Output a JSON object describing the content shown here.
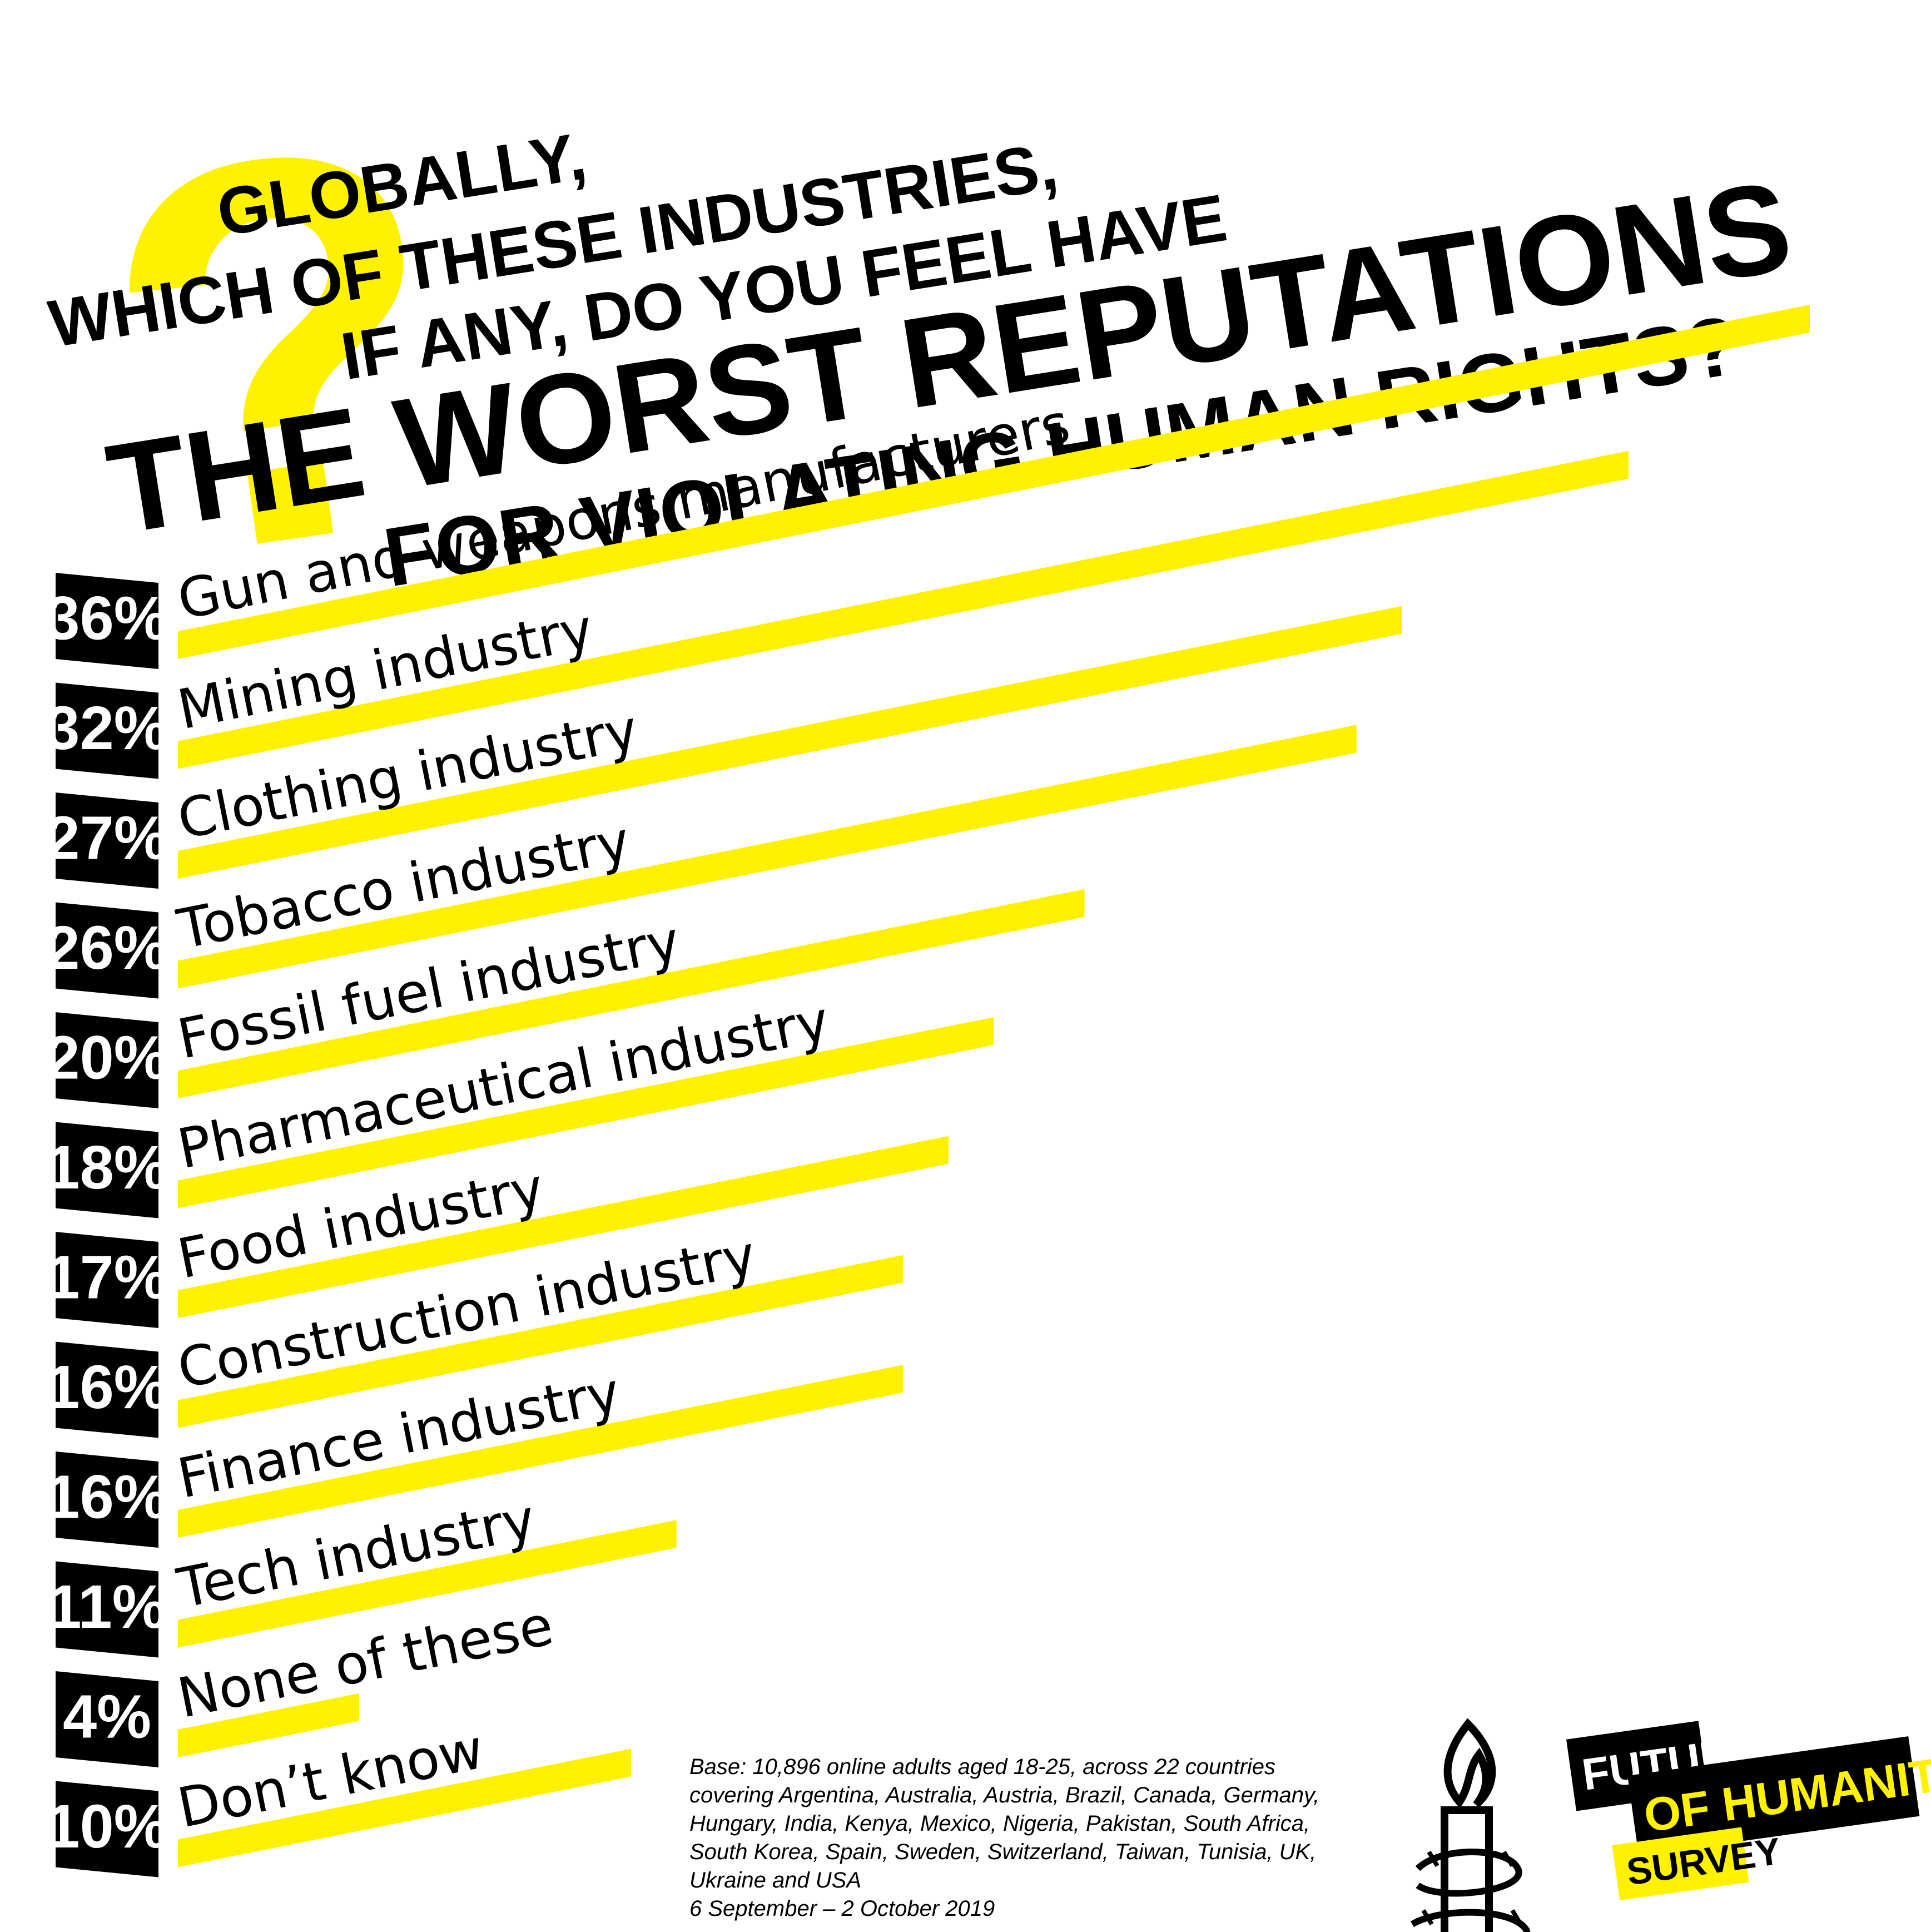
{
  "title": {
    "line1": "GLOBALLY,",
    "line2": "WHICH OF THESE INDUSTRIES,",
    "line3": "IF ANY, DO YOU FEEL HAVE",
    "line4": "THE WORST REPUTATIONS",
    "line5": "FOR VIOLATING HUMAN RIGHTS?"
  },
  "chart_data": {
    "type": "bar",
    "orientation": "horizontal",
    "title": "GLOBALLY, WHICH OF THESE INDUSTRIES, IF ANY, DO YOU FEEL HAVE THE WORST REPUTATIONS FOR VIOLATING HUMAN RIGHTS?",
    "categories": [
      "Gun and weapons manufacturers",
      "Mining industry",
      "Clothing industry",
      "Tobacco industry",
      "Fossil fuel industry",
      "Pharmaceutical industry",
      "Food industry",
      "Construction industry",
      "Finance industry",
      "Tech industry",
      "None of these",
      "Don’t know"
    ],
    "values": [
      36,
      32,
      27,
      26,
      20,
      18,
      17,
      16,
      16,
      11,
      4,
      10
    ],
    "value_labels": [
      "36%",
      "32%",
      "27%",
      "26%",
      "20%",
      "18%",
      "17%",
      "16%",
      "16%",
      "11%",
      "4%",
      "10%"
    ],
    "unit": "%",
    "xlim": [
      0,
      36
    ],
    "grid": false,
    "legend": "none",
    "colors": {
      "bar": "#FFF200",
      "label_box": "#000000",
      "label_text": "#FFFFFF",
      "text": "#000000"
    }
  },
  "footnote": {
    "lines": [
      "Base: 10,896 online adults aged 18-25, across 22 countries",
      "covering Argentina, Australia, Austria, Brazil, Canada, Germany,",
      "Hungary, India, Kenya, Mexico, Nigeria, Pakistan, South Africa,",
      "South Korea, Spain, Sweden, Switzerland, Taiwan, Tunisia, UK,",
      "Ukraine and USA",
      "6 September – 2 October 2019"
    ]
  },
  "logo": {
    "icon": "candle-barbed-wire-icon",
    "line1": "FUTURE",
    "line2": "OF HUMANITY",
    "line3": "SURVEY"
  },
  "decoration": {
    "icon": "question-mark-icon",
    "glyph": "?"
  },
  "colors": {
    "accent": "#FFF200",
    "ink": "#000000",
    "paper": "#FFFFFF"
  }
}
